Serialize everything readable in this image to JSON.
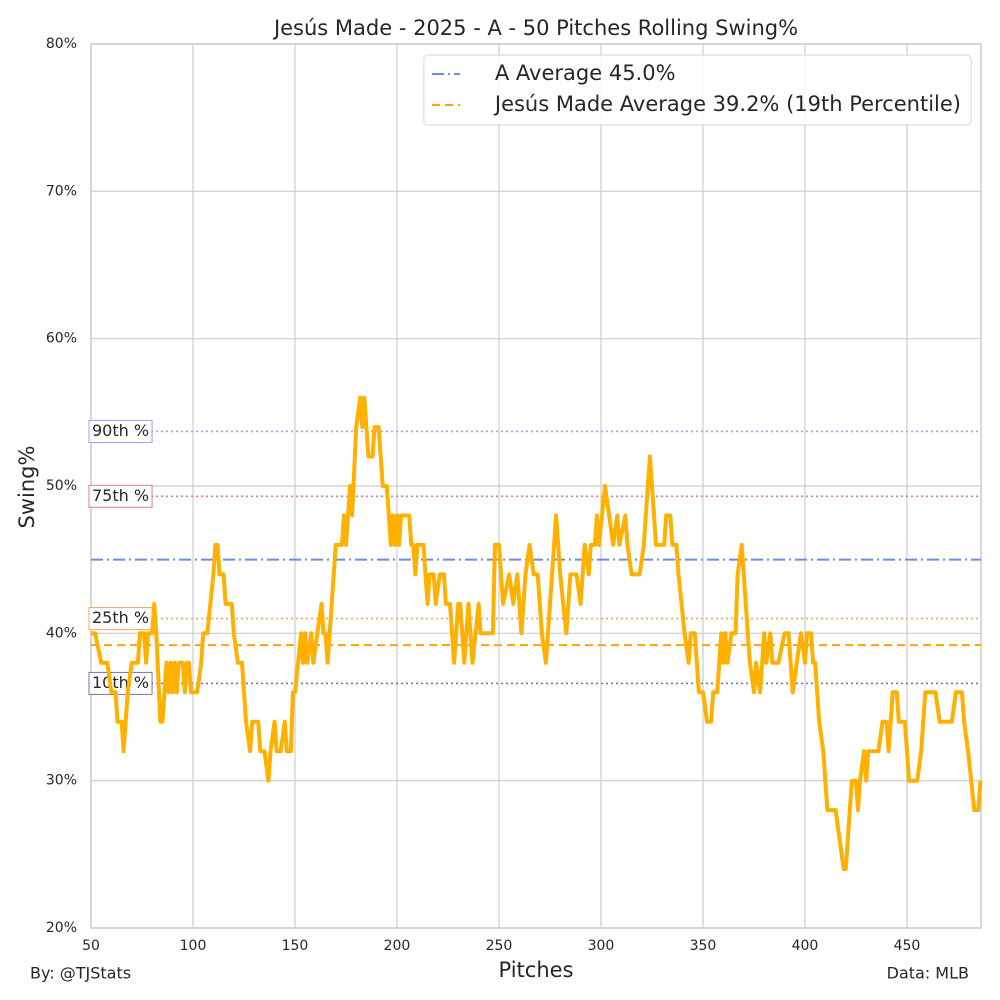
{
  "chart_data": {
    "type": "line",
    "title": "Jesús Made - 2025 - A - 50 Pitches Rolling Swing%",
    "xlabel": "Pitches",
    "ylabel": "Swing%",
    "footer_left": "By: @TJStats",
    "footer_right": "Data: MLB",
    "xlim": [
      50,
      486.3
    ],
    "ylim": [
      20,
      80
    ],
    "xticks": [
      50,
      100,
      150,
      200,
      250,
      300,
      350,
      400,
      450
    ],
    "yticks": [
      {
        "value": 20,
        "label": "20%"
      },
      {
        "value": 30,
        "label": "30%"
      },
      {
        "value": 40,
        "label": "40%"
      },
      {
        "value": 50,
        "label": "50%"
      },
      {
        "value": 60,
        "label": "60%"
      },
      {
        "value": 70,
        "label": "70%"
      },
      {
        "value": 80,
        "label": "80%"
      }
    ],
    "grid": true,
    "legend": "upper right",
    "x": [
      50,
      52,
      55,
      58,
      60,
      62,
      63,
      65,
      66,
      67,
      68,
      70,
      73,
      74,
      76,
      77,
      78,
      80,
      81,
      82,
      84,
      85,
      87,
      88,
      89,
      90,
      91,
      92,
      93,
      95,
      96,
      97,
      98,
      99,
      102,
      104,
      105,
      107,
      110,
      111,
      112,
      113,
      115,
      116,
      119,
      120,
      122,
      124,
      125,
      126,
      128,
      129,
      132,
      133,
      135,
      137,
      138,
      140,
      141,
      143,
      145,
      146,
      148,
      149,
      150,
      153,
      154,
      155,
      156,
      158,
      159,
      161,
      163,
      164,
      165,
      166,
      168,
      170,
      173,
      174,
      175,
      177,
      178,
      180,
      182,
      183,
      184,
      185,
      186,
      188,
      189,
      191,
      192,
      193,
      195,
      197,
      198,
      199,
      200,
      201,
      202,
      206,
      207,
      208,
      209,
      210,
      213,
      214,
      215,
      216,
      218,
      219,
      221,
      223,
      224,
      226,
      228,
      230,
      231,
      233,
      235,
      237,
      240,
      241,
      247,
      248,
      250,
      252,
      255,
      257,
      259,
      261,
      263,
      265,
      267,
      269,
      271,
      273,
      275,
      278,
      280,
      283,
      285,
      288,
      290,
      292,
      294,
      295,
      297,
      298,
      299,
      302,
      304,
      306,
      308,
      309,
      312,
      313,
      315,
      319,
      321,
      322,
      324,
      325,
      327,
      331,
      332,
      334,
      335,
      337,
      338,
      341,
      343,
      344,
      346,
      348,
      350,
      352,
      354,
      355,
      357,
      359,
      360,
      361,
      362,
      364,
      366,
      367,
      369,
      370,
      372,
      373,
      375,
      376,
      378,
      380,
      381,
      383,
      384,
      387,
      390,
      392,
      394,
      396,
      398,
      400,
      401,
      403,
      404,
      405,
      407,
      409,
      411,
      415,
      417,
      419,
      420,
      422,
      423,
      425,
      426,
      427,
      429,
      430,
      431,
      436,
      438,
      440,
      441,
      443,
      445,
      446,
      449,
      451,
      455,
      457,
      459,
      464,
      466,
      472,
      474,
      477,
      478,
      480,
      483,
      485,
      486
    ],
    "series": [
      {
        "color": "#ffb000",
        "values": [
          40,
          40,
          38,
          38,
          36,
          36,
          34,
          34,
          32,
          34,
          36,
          38,
          38,
          40,
          40,
          38,
          40,
          40,
          42,
          40,
          34,
          34,
          38,
          36,
          38,
          36,
          38,
          36,
          38,
          38,
          36,
          38,
          38,
          36,
          36,
          38,
          40,
          40,
          44,
          46,
          46,
          44,
          44,
          42,
          42,
          40,
          38,
          38,
          36,
          34,
          32,
          34,
          34,
          32,
          32,
          30,
          32,
          34,
          32,
          32,
          34,
          32,
          32,
          36,
          36,
          40,
          38,
          40,
          38,
          40,
          38,
          40,
          42,
          40,
          40,
          38,
          42,
          46,
          46,
          48,
          46,
          50,
          48,
          54,
          56,
          54,
          56,
          54,
          52,
          52,
          54,
          54,
          52,
          50,
          50,
          46,
          48,
          46,
          48,
          46,
          48,
          48,
          46,
          46,
          44,
          46,
          46,
          44,
          42,
          44,
          44,
          42,
          44,
          44,
          42,
          42,
          38,
          42,
          42,
          38,
          42,
          38,
          42,
          40,
          40,
          46,
          46,
          42,
          44,
          42,
          44,
          40,
          44,
          46,
          44,
          44,
          40,
          38,
          42,
          48,
          44,
          40,
          44,
          44,
          42,
          46,
          44,
          46,
          46,
          48,
          46,
          50,
          48,
          46,
          48,
          46,
          48,
          46,
          44,
          44,
          46,
          48,
          52,
          50,
          46,
          46,
          48,
          48,
          46,
          46,
          44,
          40,
          38,
          40,
          40,
          36,
          36,
          34,
          34,
          36,
          36,
          40,
          38,
          40,
          38,
          40,
          40,
          44,
          46,
          44,
          40,
          38,
          36,
          38,
          36,
          40,
          38,
          40,
          38,
          38,
          40,
          40,
          36,
          38,
          40,
          38,
          40,
          40,
          38,
          38,
          34,
          32,
          28,
          28,
          26,
          24,
          24,
          28,
          30,
          30,
          28,
          30,
          32,
          30,
          32,
          32,
          34,
          34,
          32,
          36,
          36,
          34,
          34,
          30,
          30,
          32,
          36,
          36,
          34,
          34,
          36,
          36,
          34,
          32,
          28,
          28,
          30
        ]
      }
    ],
    "reference_lines": [
      {
        "label": "A Average 45.0%",
        "value": 45.0,
        "color": "#6a8ee6",
        "style": "dashdot",
        "legend": true
      },
      {
        "label": "Jesús Made Average 39.2% (19th Percentile)",
        "value": 39.2,
        "color": "#ffa500",
        "style": "dashed",
        "legend": true
      },
      {
        "label": "90th %",
        "value": 53.7,
        "color": "#9f9ff5",
        "style": "dotted",
        "legend": false
      },
      {
        "label": "75th %",
        "value": 49.3,
        "color": "#e0789a",
        "style": "dotted",
        "legend": false
      },
      {
        "label": "25th %",
        "value": 41.0,
        "color": "#f4a460",
        "style": "dotted",
        "legend": false
      },
      {
        "label": "10th %",
        "value": 36.6,
        "color": "#7d72aa",
        "style": "dotted",
        "legend": false
      }
    ]
  }
}
